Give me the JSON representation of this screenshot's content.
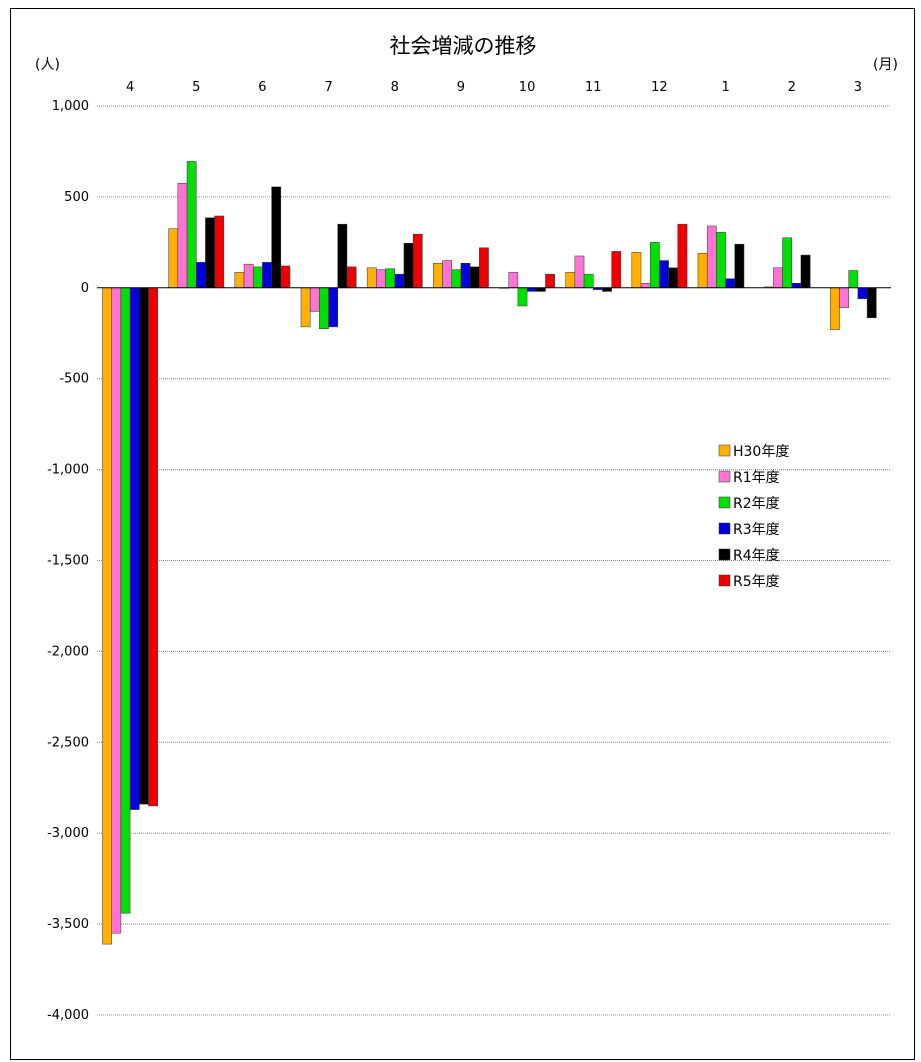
{
  "chart_data": {
    "type": "bar",
    "title": "社会増減の推移",
    "y_unit_label": "(人)",
    "x_unit_label": "(月)",
    "categories": [
      "4",
      "5",
      "6",
      "7",
      "8",
      "9",
      "10",
      "11",
      "12",
      "1",
      "2",
      "3"
    ],
    "ylim": [
      -4000,
      1000
    ],
    "yticks": [
      1000,
      500,
      0,
      -500,
      -1000,
      -1500,
      -2000,
      -2500,
      -3000,
      -3500,
      -4000
    ],
    "ytick_labels": [
      "1,000",
      "500",
      "0",
      "-500",
      "-1,000",
      "-1,500",
      "-2,000",
      "-2,500",
      "-3,000",
      "-3,500",
      "-4,000"
    ],
    "grid": true,
    "legend_position": "right",
    "series": [
      {
        "name": "H30年度",
        "color": "#FFB000",
        "values": [
          -3610,
          325,
          85,
          -215,
          110,
          135,
          0,
          85,
          195,
          190,
          5,
          -230
        ]
      },
      {
        "name": "R1年度",
        "color": "#FF73D2",
        "values": [
          -3550,
          575,
          130,
          -130,
          100,
          150,
          85,
          175,
          25,
          340,
          110,
          -110
        ]
      },
      {
        "name": "R2年度",
        "color": "#00E000",
        "values": [
          -3440,
          695,
          115,
          -225,
          105,
          100,
          -100,
          75,
          250,
          305,
          275,
          95
        ]
      },
      {
        "name": "R3年度",
        "color": "#0000DD",
        "values": [
          -2870,
          140,
          140,
          -215,
          75,
          135,
          -20,
          -10,
          150,
          50,
          25,
          -60
        ]
      },
      {
        "name": "R4年度",
        "color": "#000000",
        "values": [
          -2840,
          385,
          555,
          350,
          245,
          115,
          -20,
          -20,
          110,
          240,
          180,
          -165
        ]
      },
      {
        "name": "R5年度",
        "color": "#EE0000",
        "values": [
          -2850,
          395,
          120,
          115,
          295,
          220,
          75,
          200,
          350,
          null,
          null,
          null
        ]
      }
    ]
  }
}
